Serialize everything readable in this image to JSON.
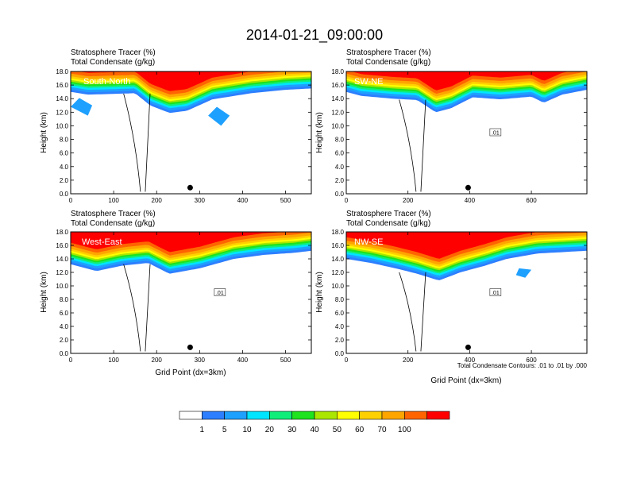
{
  "title": "2014-01-21_09:00:00",
  "colors": {
    "background": "#ffffff",
    "frame": "#000000",
    "contour": "#000000"
  },
  "chart_data": [
    {
      "type": "heatmap",
      "panel": "South-North",
      "label_line1": "Stratosphere Tracer   (%)",
      "label_line2": "Total Condensate   (g/kg)",
      "ylabel": "Height (km)",
      "xlabel": "",
      "xlim": [
        0,
        560
      ],
      "ylim": [
        0,
        18
      ],
      "xticks": [
        0,
        100,
        200,
        300,
        400,
        500
      ],
      "yticks": [
        "0.0",
        "2.0",
        "4.0",
        "6.0",
        "8.0",
        "10.0",
        "12.0",
        "14.0",
        "16.0",
        "18.0"
      ],
      "tracer_base_profile": [
        [
          0,
          15.0
        ],
        [
          40,
          14.6
        ],
        [
          100,
          14.7
        ],
        [
          150,
          14.8
        ],
        [
          185,
          13.0
        ],
        [
          230,
          11.9
        ],
        [
          270,
          12.2
        ],
        [
          330,
          13.9
        ],
        [
          420,
          14.8
        ],
        [
          500,
          15.3
        ],
        [
          560,
          15.5
        ]
      ],
      "patches": [
        [
          [
            20,
            14.1
          ],
          [
            50,
            13.0
          ],
          [
            40,
            11.5
          ],
          [
            0,
            12.8
          ]
        ],
        [
          [
            340,
            12.8
          ],
          [
            370,
            11.5
          ],
          [
            350,
            10.0
          ],
          [
            320,
            11.5
          ]
        ]
      ],
      "contour_label": "",
      "marker": {
        "x": 278,
        "y": 0.9
      }
    },
    {
      "type": "heatmap",
      "panel": "SW-NE",
      "label_line1": "Stratosphere Tracer   (%)",
      "label_line2": "Total Condensate   (g/kg)",
      "ylabel": "Height (km)",
      "xlabel": "",
      "xlim": [
        0,
        780
      ],
      "ylim": [
        0,
        18
      ],
      "xticks": [
        0,
        200,
        400,
        600
      ],
      "yticks": [
        "0.0",
        "2.0",
        "4.0",
        "6.0",
        "8.0",
        "10.0",
        "12.0",
        "14.0",
        "16.0",
        "18.0"
      ],
      "tracer_base_profile": [
        [
          0,
          15.0
        ],
        [
          50,
          14.4
        ],
        [
          150,
          14.0
        ],
        [
          230,
          13.8
        ],
        [
          290,
          12.0
        ],
        [
          340,
          12.6
        ],
        [
          410,
          14.2
        ],
        [
          500,
          13.9
        ],
        [
          600,
          14.3
        ],
        [
          640,
          13.4
        ],
        [
          700,
          14.6
        ],
        [
          780,
          15.3
        ]
      ],
      "patches": [],
      "contour_label": ".01",
      "marker": {
        "x": 395,
        "y": 0.9
      }
    },
    {
      "type": "heatmap",
      "panel": "West-East",
      "label_line1": "Stratosphere Tracer   (%)",
      "label_line2": "Total Condensate   (g/kg)",
      "ylabel": "Height (km)",
      "xlabel": "Grid Point (dx=3km)",
      "xlim": [
        0,
        560
      ],
      "ylim": [
        0,
        18
      ],
      "xticks": [
        0,
        100,
        200,
        300,
        400,
        500
      ],
      "yticks": [
        "0.0",
        "2.0",
        "4.0",
        "6.0",
        "8.0",
        "10.0",
        "12.0",
        "14.0",
        "16.0",
        "18.0"
      ],
      "tracer_base_profile": [
        [
          0,
          13.2
        ],
        [
          60,
          12.2
        ],
        [
          120,
          13.0
        ],
        [
          180,
          13.4
        ],
        [
          230,
          11.8
        ],
        [
          300,
          12.6
        ],
        [
          380,
          14.0
        ],
        [
          450,
          14.6
        ],
        [
          520,
          14.9
        ],
        [
          560,
          15.2
        ]
      ],
      "patches": [],
      "contour_label": ".01",
      "marker": {
        "x": 278,
        "y": 0.9
      }
    },
    {
      "type": "heatmap",
      "panel": "NW-SE",
      "label_line1": "Stratosphere Tracer   (%)",
      "label_line2": "Total Condensate   (g/kg)",
      "ylabel": "Height (km)",
      "xlabel": "Grid Point (dx=3km)",
      "xlim": [
        0,
        780
      ],
      "ylim": [
        0,
        18
      ],
      "xticks": [
        0,
        200,
        400,
        600
      ],
      "yticks": [
        "0.0",
        "2.0",
        "4.0",
        "6.0",
        "8.0",
        "10.0",
        "12.0",
        "14.0",
        "16.0",
        "18.0"
      ],
      "tracer_base_profile": [
        [
          0,
          14.0
        ],
        [
          80,
          13.4
        ],
        [
          160,
          12.6
        ],
        [
          230,
          11.8
        ],
        [
          300,
          10.8
        ],
        [
          370,
          12.0
        ],
        [
          450,
          13.0
        ],
        [
          520,
          14.0
        ],
        [
          620,
          14.8
        ],
        [
          780,
          15.2
        ]
      ],
      "patches": [
        [
          [
            560,
            12.6
          ],
          [
            600,
            12.4
          ],
          [
            580,
            11.2
          ],
          [
            550,
            11.6
          ]
        ]
      ],
      "contour_label": ".01",
      "marker": {
        "x": 395,
        "y": 0.9
      }
    }
  ],
  "colorbar": {
    "colors": [
      "#ffffff",
      "#2d7fff",
      "#1ea0ff",
      "#00e5ff",
      "#10ee7a",
      "#1ee31e",
      "#aae600",
      "#ffff00",
      "#ffd000",
      "#ffa500",
      "#ff6400",
      "#ff0000"
    ],
    "labels": [
      "1",
      "5",
      "10",
      "20",
      "30",
      "40",
      "50",
      "60",
      "70",
      "100"
    ]
  },
  "note": "Total Condensate Contours: .01 to .01 by .000"
}
